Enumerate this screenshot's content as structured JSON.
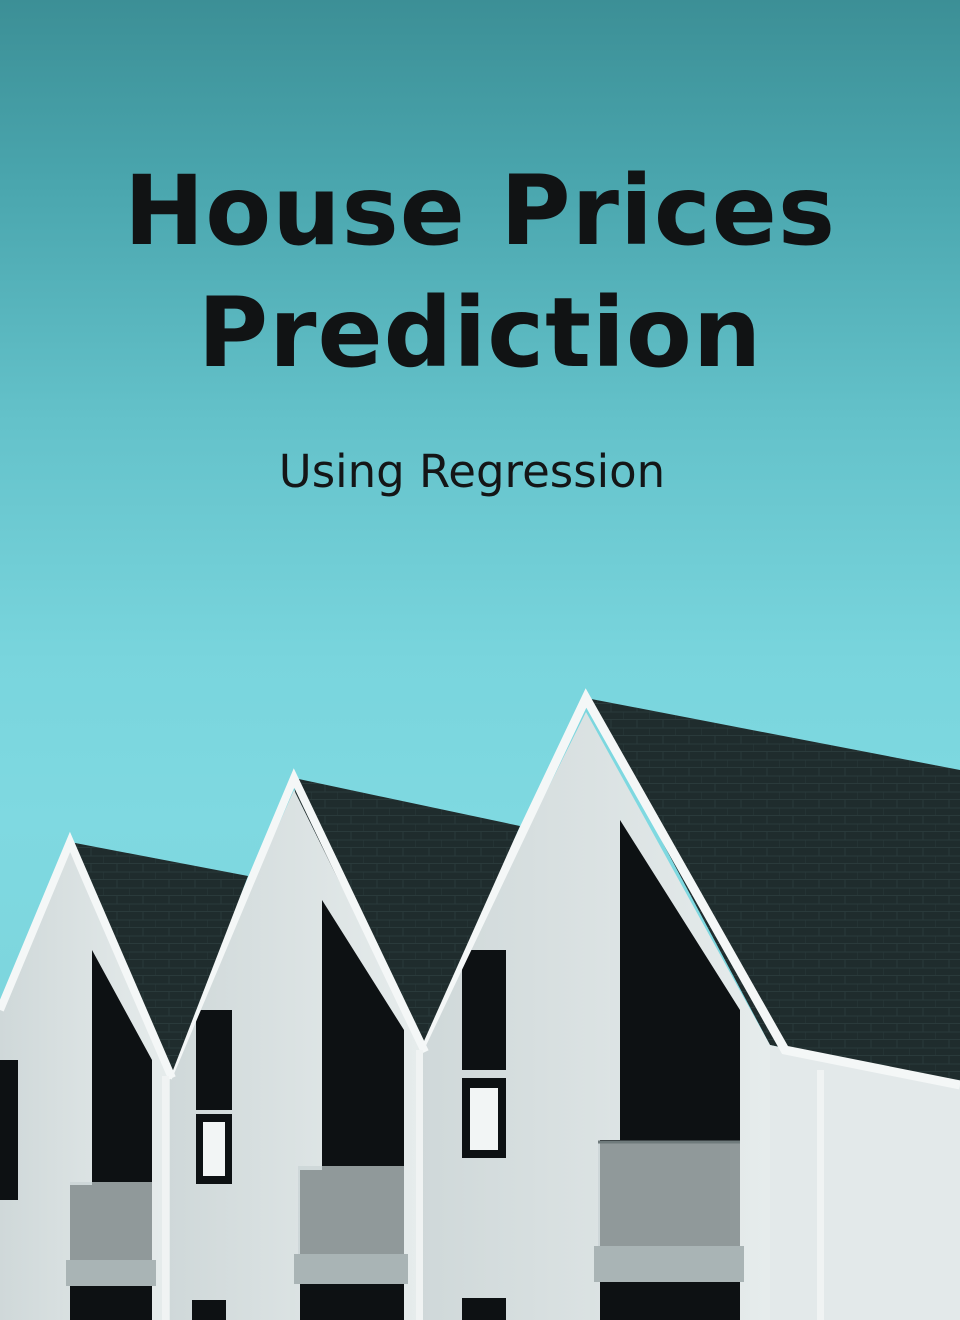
{
  "cover": {
    "title_line1": "House Prices",
    "title_line2": "Prediction",
    "subtitle": "Using Regression"
  },
  "illustration": {
    "description_icon": "row-of-gabled-houses-icon",
    "colors": {
      "sky_top": "#3c8f96",
      "sky_mid": "#7fd9e1",
      "roof": "#1f2c2d",
      "wall": "#dfe6e7",
      "trim": "#f4f7f7",
      "window_dark": "#0d1113"
    }
  }
}
